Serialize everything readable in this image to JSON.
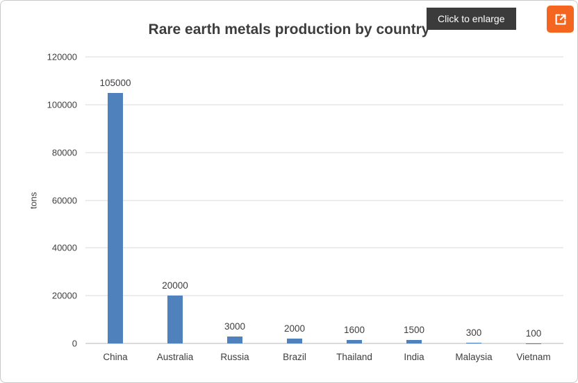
{
  "overlay": {
    "enlarge_label": "Click to enlarge"
  },
  "colors": {
    "bar": "#4f81bd",
    "tooltip_bg": "#3b3b3b",
    "accent_orange": "#f4651f",
    "gridline": "#d9d9d9"
  },
  "chart_data": {
    "type": "bar",
    "title": "Rare earth metals production by country",
    "categories": [
      "China",
      "Australia",
      "Russia",
      "Brazil",
      "Thailand",
      "India",
      "Malaysia",
      "Vietnam"
    ],
    "values": [
      105000,
      20000,
      3000,
      2000,
      1600,
      1500,
      300,
      100
    ],
    "xlabel": "",
    "ylabel": "tons",
    "ylim": [
      0,
      120000
    ],
    "yticks": [
      0,
      20000,
      40000,
      60000,
      80000,
      100000,
      120000
    ],
    "grid": true,
    "legend": "none"
  }
}
